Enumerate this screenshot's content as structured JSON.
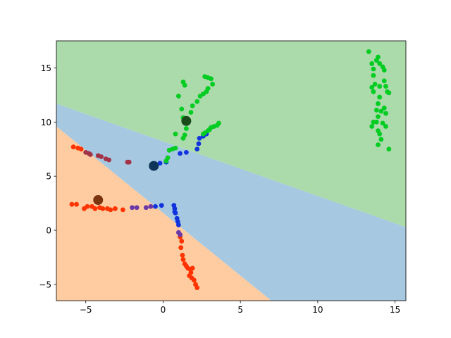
{
  "chart_data": {
    "type": "scatter",
    "title": "",
    "xlabel": "",
    "ylabel": "",
    "xlim": [
      -6.9,
      15.7
    ],
    "ylim": [
      -6.5,
      17.5
    ],
    "xticks": [
      -5,
      0,
      5,
      10,
      15
    ],
    "yticks": [
      -5,
      0,
      5,
      10,
      15
    ],
    "grid": false,
    "legend": "none",
    "regions": [
      {
        "color": "#ffcba0",
        "polygon": [
          [
            -6.9,
            9.6
          ],
          [
            7.0,
            -6.5
          ],
          [
            -6.9,
            -6.5
          ]
        ]
      },
      {
        "color": "#a6c8e0",
        "polygon": [
          [
            -6.9,
            11.7
          ],
          [
            15.7,
            0.3
          ],
          [
            15.7,
            -6.5
          ],
          [
            7.0,
            -6.5
          ],
          [
            -6.9,
            9.6
          ]
        ]
      },
      {
        "color": "#abdbaa",
        "polygon": [
          [
            -6.9,
            17.5
          ],
          [
            15.7,
            17.5
          ],
          [
            15.7,
            0.3
          ],
          [
            -6.9,
            11.7
          ]
        ]
      }
    ],
    "centroids": [
      {
        "color": "#7a3510",
        "x": -4.2,
        "y": 2.8
      },
      {
        "color": "#0e3557",
        "x": -0.6,
        "y": 5.95
      },
      {
        "color": "#1a4a1a",
        "x": 1.5,
        "y": 10.1
      }
    ],
    "points": [
      {
        "color": "#ff3300",
        "xy": [
          [
            -5.9,
            2.4
          ],
          [
            -5.6,
            2.4
          ],
          [
            -5.1,
            2.0
          ],
          [
            -4.9,
            2.2
          ],
          [
            -4.6,
            2.2
          ],
          [
            -4.4,
            2.0
          ],
          [
            -4.1,
            2.1
          ],
          [
            -3.9,
            2.0
          ],
          [
            -3.6,
            2.0
          ],
          [
            -3.4,
            1.9
          ],
          [
            -3.1,
            2.0
          ],
          [
            -2.6,
            1.9
          ]
        ]
      },
      {
        "color": "#ff3300",
        "xy": [
          [
            -5.8,
            7.7
          ],
          [
            -5.5,
            7.6
          ],
          [
            -5.3,
            7.5
          ],
          [
            1.1,
            -0.6
          ],
          [
            1.2,
            -1.0
          ],
          [
            1.15,
            -1.6
          ],
          [
            1.25,
            -2.3
          ],
          [
            1.3,
            -2.7
          ],
          [
            1.4,
            -3.1
          ],
          [
            1.5,
            -3.3
          ],
          [
            1.6,
            -3.5
          ],
          [
            1.75,
            -3.6
          ],
          [
            1.9,
            -3.5
          ],
          [
            1.8,
            -3.9
          ],
          [
            1.7,
            -4.2
          ],
          [
            1.85,
            -4.4
          ],
          [
            2.0,
            -4.6
          ],
          [
            2.1,
            -5.0
          ],
          [
            2.2,
            -5.3
          ]
        ]
      },
      {
        "color": "#a33448",
        "xy": [
          [
            -5.0,
            7.2
          ],
          [
            -4.8,
            7.1
          ],
          [
            -4.7,
            7.0
          ],
          [
            -4.2,
            6.9
          ],
          [
            -4.0,
            6.8
          ],
          [
            -3.7,
            6.6
          ],
          [
            -3.5,
            6.5
          ],
          [
            -2.3,
            6.3
          ],
          [
            -2.2,
            6.3
          ]
        ]
      },
      {
        "color": "#6b38a8",
        "xy": [
          [
            -2.0,
            2.1
          ],
          [
            -1.7,
            2.1
          ],
          [
            -1.1,
            2.1
          ],
          [
            -0.8,
            2.2
          ],
          [
            1.0,
            -0.2
          ],
          [
            1.1,
            -0.4
          ]
        ]
      },
      {
        "color": "#1133dd",
        "xy": [
          [
            -0.5,
            2.2
          ],
          [
            -0.1,
            2.3
          ],
          [
            0.7,
            2.3
          ],
          [
            0.75,
            2.0
          ],
          [
            0.75,
            1.7
          ],
          [
            0.8,
            1.6
          ],
          [
            0.9,
            1.1
          ],
          [
            0.95,
            0.8
          ],
          [
            1.0,
            0.5
          ],
          [
            -0.2,
            6.2
          ],
          [
            0.2,
            6.3
          ],
          [
            1.1,
            7.1
          ],
          [
            1.5,
            7.2
          ],
          [
            2.2,
            7.5
          ],
          [
            2.3,
            8.0
          ],
          [
            2.35,
            8.5
          ],
          [
            2.6,
            8.7
          ],
          [
            2.8,
            8.9
          ]
        ]
      },
      {
        "color": "#00cc22",
        "xy": [
          [
            0.2,
            6.4
          ],
          [
            0.3,
            6.7
          ],
          [
            0.4,
            7.4
          ],
          [
            0.6,
            7.5
          ],
          [
            0.8,
            7.6
          ],
          [
            0.8,
            8.9
          ],
          [
            1.3,
            8.5
          ],
          [
            1.4,
            8.8
          ],
          [
            1.5,
            9.4
          ],
          [
            1.6,
            9.9
          ],
          [
            1.2,
            11.2
          ],
          [
            1.3,
            10.4
          ],
          [
            1.8,
            10.9
          ],
          [
            1.9,
            11.5
          ],
          [
            2.2,
            11.9
          ],
          [
            2.4,
            12.4
          ],
          [
            1.0,
            12.4
          ],
          [
            1.3,
            13.7
          ],
          [
            1.4,
            13.4
          ],
          [
            2.6,
            12.6
          ],
          [
            2.8,
            12.8
          ],
          [
            2.9,
            13.1
          ],
          [
            2.7,
            14.2
          ],
          [
            2.9,
            14.1
          ],
          [
            3.1,
            14.0
          ],
          [
            3.2,
            13.5
          ],
          [
            3.0,
            9.3
          ],
          [
            3.1,
            9.5
          ],
          [
            3.3,
            9.6
          ],
          [
            3.5,
            9.7
          ],
          [
            3.6,
            9.9
          ],
          [
            2.9,
            9.2
          ],
          [
            2.7,
            9.0
          ],
          [
            2.6,
            8.9
          ],
          [
            13.3,
            16.5
          ],
          [
            13.5,
            15.4
          ],
          [
            13.6,
            14.9
          ],
          [
            13.8,
            15.7
          ],
          [
            13.9,
            16.0
          ],
          [
            14.0,
            15.4
          ],
          [
            14.2,
            15.1
          ],
          [
            14.3,
            14.8
          ],
          [
            13.6,
            14.3
          ],
          [
            13.7,
            13.5
          ],
          [
            13.5,
            13.2
          ],
          [
            13.6,
            12.8
          ],
          [
            14.0,
            13.3
          ],
          [
            14.3,
            13.8
          ],
          [
            14.4,
            13.3
          ],
          [
            14.5,
            12.8
          ],
          [
            14.6,
            12.7
          ],
          [
            14.0,
            12.3
          ],
          [
            13.9,
            11.7
          ],
          [
            13.8,
            11.1
          ],
          [
            14.1,
            11.0
          ],
          [
            14.3,
            11.3
          ],
          [
            14.4,
            10.8
          ],
          [
            13.9,
            10.5
          ],
          [
            13.8,
            10.0
          ],
          [
            14.2,
            9.9
          ],
          [
            14.4,
            9.6
          ],
          [
            13.9,
            9.2
          ],
          [
            14.0,
            8.9
          ],
          [
            13.6,
            10.0
          ],
          [
            13.5,
            9.6
          ],
          [
            14.1,
            8.4
          ],
          [
            13.9,
            7.9
          ],
          [
            14.6,
            7.5
          ]
        ]
      }
    ]
  }
}
